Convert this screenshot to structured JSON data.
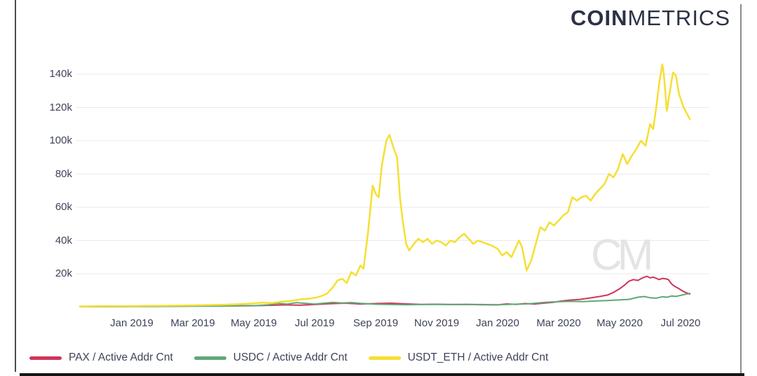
{
  "logo": {
    "bold": "COIN",
    "light": "METRICS",
    "color": "#2c3145"
  },
  "watermark_text": "CM",
  "legend": {
    "items": [
      {
        "label": "PAX / Active Addr Cnt",
        "color": "#d0345b"
      },
      {
        "label": "USDC / Active Addr Cnt",
        "color": "#5fa877"
      },
      {
        "label": "USDT_ETH / Active Addr Cnt",
        "color": "#f6df32"
      }
    ]
  },
  "chart_data": {
    "type": "line",
    "title": "",
    "xlabel": "",
    "ylabel": "",
    "grid": true,
    "legend_position": "bottom-left",
    "x_axis": {
      "tick_labels": [
        "Jan 2019",
        "Mar 2019",
        "May 2019",
        "Jul 2019",
        "Sep 2019",
        "Nov 2019",
        "Jan 2020",
        "Mar 2020",
        "May 2020",
        "Jul 2020"
      ],
      "tick_positions_months": [
        0,
        2,
        4,
        6,
        8,
        10,
        12,
        14,
        16,
        18
      ]
    },
    "y_axis": {
      "tick_labels": [
        "20k",
        "40k",
        "60k",
        "80k",
        "100k",
        "120k",
        "140k"
      ],
      "tick_values": [
        20,
        40,
        60,
        80,
        100,
        120,
        140
      ],
      "unit": "active addresses, thousands"
    },
    "xlim_months": [
      -1.8,
      18.5
    ],
    "ylim": [
      0,
      150
    ],
    "series": [
      {
        "name": "PAX / Active Addr Cnt",
        "color": "#d0345b",
        "width": 2,
        "points": [
          [
            -1.7,
            0.3
          ],
          [
            0,
            0.4
          ],
          [
            1,
            0.5
          ],
          [
            2,
            0.6
          ],
          [
            3,
            0.7
          ],
          [
            4,
            0.8
          ],
          [
            4.5,
            1.0
          ],
          [
            5,
            1.3
          ],
          [
            5.5,
            1.1
          ],
          [
            6,
            1.5
          ],
          [
            6.5,
            2.0
          ],
          [
            7,
            2.3
          ],
          [
            7.5,
            1.8
          ],
          [
            8,
            2.1
          ],
          [
            8.5,
            2.3
          ],
          [
            9,
            1.9
          ],
          [
            9.5,
            1.6
          ],
          [
            10,
            1.7
          ],
          [
            10.5,
            1.5
          ],
          [
            11,
            1.6
          ],
          [
            11.5,
            1.4
          ],
          [
            12,
            1.3
          ],
          [
            12.3,
            1.9
          ],
          [
            12.6,
            1.6
          ],
          [
            12.9,
            2.1
          ],
          [
            13.2,
            1.8
          ],
          [
            13.5,
            2.3
          ],
          [
            13.8,
            2.8
          ],
          [
            14.1,
            3.6
          ],
          [
            14.4,
            4.2
          ],
          [
            14.7,
            4.6
          ],
          [
            15,
            5.4
          ],
          [
            15.3,
            6.2
          ],
          [
            15.6,
            7.2
          ],
          [
            15.8,
            8.8
          ],
          [
            16,
            11
          ],
          [
            16.15,
            13
          ],
          [
            16.3,
            15.5
          ],
          [
            16.45,
            16.5
          ],
          [
            16.6,
            16
          ],
          [
            16.75,
            17.5
          ],
          [
            16.9,
            18.5
          ],
          [
            17,
            17.5
          ],
          [
            17.1,
            18
          ],
          [
            17.2,
            17.3
          ],
          [
            17.3,
            16.5
          ],
          [
            17.4,
            17.2
          ],
          [
            17.5,
            17
          ],
          [
            17.6,
            16.5
          ],
          [
            17.7,
            14
          ],
          [
            17.8,
            12.5
          ],
          [
            17.95,
            11
          ],
          [
            18.1,
            9.2
          ],
          [
            18.3,
            7.8
          ]
        ]
      },
      {
        "name": "USDC / Active Addr Cnt",
        "color": "#5fa877",
        "width": 2,
        "points": [
          [
            -1.7,
            0.2
          ],
          [
            0,
            0.3
          ],
          [
            1,
            0.4
          ],
          [
            2,
            0.5
          ],
          [
            3,
            0.6
          ],
          [
            4,
            0.8
          ],
          [
            4.5,
            1.4
          ],
          [
            4.8,
            2.2
          ],
          [
            5.1,
            1.8
          ],
          [
            5.4,
            2.6
          ],
          [
            5.7,
            2.2
          ],
          [
            6,
            1.8
          ],
          [
            6.3,
            2.3
          ],
          [
            6.6,
            2.8
          ],
          [
            6.9,
            2.4
          ],
          [
            7.2,
            2.7
          ],
          [
            7.5,
            2.2
          ],
          [
            8,
            1.7
          ],
          [
            8.5,
            1.5
          ],
          [
            9,
            1.4
          ],
          [
            9.5,
            1.5
          ],
          [
            10,
            1.6
          ],
          [
            10.5,
            1.5
          ],
          [
            11,
            1.6
          ],
          [
            11.5,
            1.5
          ],
          [
            12,
            1.4
          ],
          [
            12.5,
            1.7
          ],
          [
            13,
            1.9
          ],
          [
            13.3,
            2.4
          ],
          [
            13.6,
            2.9
          ],
          [
            14,
            3.2
          ],
          [
            14.4,
            3.4
          ],
          [
            14.8,
            3.3
          ],
          [
            15.2,
            3.6
          ],
          [
            15.6,
            3.9
          ],
          [
            16,
            4.3
          ],
          [
            16.3,
            4.6
          ],
          [
            16.6,
            5.9
          ],
          [
            16.8,
            6.3
          ],
          [
            17,
            5.6
          ],
          [
            17.2,
            5.3
          ],
          [
            17.4,
            6.2
          ],
          [
            17.55,
            5.9
          ],
          [
            17.7,
            6.6
          ],
          [
            17.85,
            6.4
          ],
          [
            18,
            7.0
          ],
          [
            18.15,
            7.6
          ],
          [
            18.3,
            8.2
          ]
        ]
      },
      {
        "name": "USDT_ETH / Active Addr Cnt",
        "color": "#f6df32",
        "width": 2.5,
        "points": [
          [
            -1.7,
            0.4
          ],
          [
            -1,
            0.5
          ],
          [
            0,
            0.6
          ],
          [
            0.5,
            0.7
          ],
          [
            1,
            0.8
          ],
          [
            1.5,
            0.9
          ],
          [
            2,
            1.0
          ],
          [
            2.5,
            1.2
          ],
          [
            3,
            1.4
          ],
          [
            3.5,
            1.7
          ],
          [
            4,
            2.2
          ],
          [
            4.3,
            2.6
          ],
          [
            4.6,
            2.4
          ],
          [
            4.9,
            3.2
          ],
          [
            5.2,
            3.6
          ],
          [
            5.5,
            4.5
          ],
          [
            5.8,
            5.0
          ],
          [
            6,
            5.5
          ],
          [
            6.2,
            6.5
          ],
          [
            6.4,
            8
          ],
          [
            6.6,
            12
          ],
          [
            6.75,
            16
          ],
          [
            6.9,
            17
          ],
          [
            7.05,
            14.5
          ],
          [
            7.2,
            21
          ],
          [
            7.35,
            19
          ],
          [
            7.5,
            25
          ],
          [
            7.6,
            23
          ],
          [
            7.75,
            45
          ],
          [
            7.9,
            73
          ],
          [
            8,
            68
          ],
          [
            8.1,
            66
          ],
          [
            8.2,
            85
          ],
          [
            8.35,
            100
          ],
          [
            8.45,
            103.5
          ],
          [
            8.6,
            95
          ],
          [
            8.7,
            90
          ],
          [
            8.8,
            65
          ],
          [
            8.9,
            50
          ],
          [
            9,
            38
          ],
          [
            9.1,
            34
          ],
          [
            9.25,
            38
          ],
          [
            9.4,
            41
          ],
          [
            9.55,
            39
          ],
          [
            9.7,
            41
          ],
          [
            9.85,
            38
          ],
          [
            10,
            40
          ],
          [
            10.15,
            39
          ],
          [
            10.3,
            37
          ],
          [
            10.45,
            40
          ],
          [
            10.6,
            39
          ],
          [
            10.75,
            42
          ],
          [
            10.9,
            44
          ],
          [
            11.05,
            41
          ],
          [
            11.2,
            38
          ],
          [
            11.35,
            40
          ],
          [
            11.5,
            39
          ],
          [
            11.65,
            38
          ],
          [
            11.8,
            37
          ],
          [
            12,
            35
          ],
          [
            12.15,
            31
          ],
          [
            12.3,
            33
          ],
          [
            12.45,
            30
          ],
          [
            12.6,
            36
          ],
          [
            12.7,
            40
          ],
          [
            12.8,
            36
          ],
          [
            12.95,
            22
          ],
          [
            13.1,
            28
          ],
          [
            13.25,
            38
          ],
          [
            13.4,
            48
          ],
          [
            13.55,
            46
          ],
          [
            13.7,
            51
          ],
          [
            13.85,
            49
          ],
          [
            14,
            52
          ],
          [
            14.15,
            55
          ],
          [
            14.3,
            57
          ],
          [
            14.45,
            66
          ],
          [
            14.6,
            64
          ],
          [
            14.75,
            66
          ],
          [
            14.9,
            67
          ],
          [
            15.05,
            64
          ],
          [
            15.2,
            68
          ],
          [
            15.35,
            71
          ],
          [
            15.5,
            74
          ],
          [
            15.65,
            80
          ],
          [
            15.8,
            78
          ],
          [
            15.95,
            83
          ],
          [
            16.1,
            92
          ],
          [
            16.25,
            86
          ],
          [
            16.4,
            91
          ],
          [
            16.55,
            95
          ],
          [
            16.7,
            100
          ],
          [
            16.85,
            97
          ],
          [
            17,
            110
          ],
          [
            17.1,
            107
          ],
          [
            17.2,
            120
          ],
          [
            17.3,
            135
          ],
          [
            17.4,
            146
          ],
          [
            17.45,
            140
          ],
          [
            17.55,
            118
          ],
          [
            17.65,
            130
          ],
          [
            17.75,
            141
          ],
          [
            17.85,
            139
          ],
          [
            17.95,
            128
          ],
          [
            18.1,
            120
          ],
          [
            18.3,
            113
          ]
        ]
      }
    ]
  },
  "style_colors": {
    "axis_text": "#3e4358",
    "gridline": "#e9e9e9",
    "watermark": "#e4e4e4",
    "frame_dark": "#151515"
  }
}
